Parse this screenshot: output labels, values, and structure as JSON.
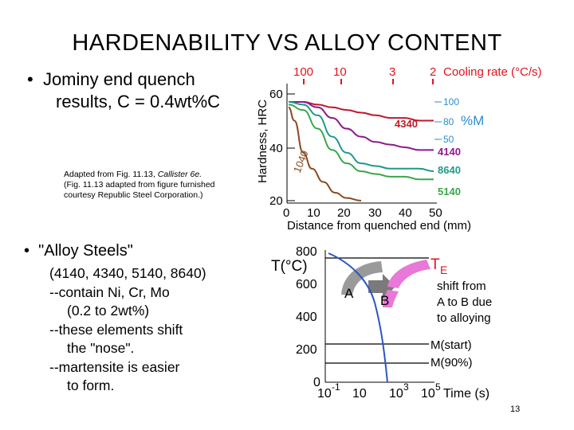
{
  "slide": {
    "title": "HARDENABILITY VS ALLOY CONTENT",
    "bullet1": {
      "marker": "•",
      "line1": "Jominy end quench",
      "line2": "results, C = 0.4wt%C"
    },
    "credit": {
      "line1_a": "Adapted from Fig. 11.13, ",
      "line1_b": "Callister 6e.",
      "line2": "(Fig. 11.13 adapted from figure furnished",
      "line3": "courtesy Republic Steel Corporation.)"
    },
    "bullet2": {
      "marker": "•",
      "text": "\"Alloy Steels\""
    },
    "alloy_list": [
      "(4140, 4340, 5140, 8640)",
      "--contain Ni, Cr, Mo",
      "(0.2 to 2wt%)",
      "--these elements shift",
      "the \"nose\".",
      "--martensite is easier",
      "to form."
    ],
    "page_number": "13"
  },
  "chart_data": [
    {
      "type": "line",
      "xlabel": "Distance from quenched end (mm)",
      "ylabel": "Hardness, HRC",
      "top_axis_label": "Cooling rate (°C/s)",
      "top_ticks": [
        "100",
        "10",
        "3",
        "2"
      ],
      "x_ticks": [
        "0",
        "10",
        "20",
        "30",
        "40",
        "50"
      ],
      "y_ticks": [
        "20",
        "40",
        "60"
      ],
      "xlim": [
        0,
        50
      ],
      "ylim": [
        20,
        65
      ],
      "right_axis_label": "%M",
      "right_ticks": [
        "100",
        "80",
        "50"
      ],
      "series": [
        {
          "name": "4340",
          "color": "#c0182a",
          "x": [
            0,
            5,
            10,
            15,
            20,
            25,
            30,
            35,
            40,
            45,
            50
          ],
          "y": [
            57,
            57,
            56,
            55,
            54,
            53,
            52,
            51,
            51,
            50,
            50
          ]
        },
        {
          "name": "4140",
          "color": "#8b1a8a",
          "x": [
            0,
            5,
            10,
            15,
            20,
            25,
            30,
            35,
            40,
            45,
            50
          ],
          "y": [
            57,
            57,
            55,
            51,
            47,
            44,
            42,
            41,
            40,
            39,
            39
          ]
        },
        {
          "name": "8640",
          "color": "#1f9a8a",
          "x": [
            0,
            5,
            10,
            15,
            20,
            25,
            30,
            35,
            40,
            45,
            50
          ],
          "y": [
            57,
            56,
            52,
            44,
            38,
            34,
            33,
            32,
            32,
            32,
            31
          ]
        },
        {
          "name": "5140",
          "color": "#3aa64a",
          "x": [
            0,
            5,
            10,
            15,
            20,
            25,
            30,
            35,
            40,
            45,
            50
          ],
          "y": [
            56,
            54,
            47,
            39,
            34,
            31,
            30,
            29,
            29,
            28,
            28
          ]
        },
        {
          "name": "1040",
          "color": "#8b4a1e",
          "x": [
            0,
            2,
            5,
            8,
            12,
            16,
            20,
            25
          ],
          "y": [
            55,
            50,
            38,
            32,
            27,
            23,
            21,
            20
          ]
        }
      ],
      "colors": {
        "top_axis": "#e2121e",
        "right_axis": "#2e8ccf"
      }
    },
    {
      "type": "line",
      "title": "",
      "ylabel": "T(°C)",
      "xlabel": "Time (s)",
      "y_ticks": [
        "800",
        "600",
        "400",
        "200",
        "0"
      ],
      "x_ticks": [
        "10",
        "10",
        "10",
        "10"
      ],
      "x_tick_exponents": [
        "-1",
        "",
        "3",
        "5"
      ],
      "labels": {
        "TE": "T",
        "TE_sub": "E",
        "A": "A",
        "B": "B",
        "mstart": "M(start)",
        "m90": "M(90%)"
      },
      "annotation": [
        "shift from",
        "A to B due",
        "to alloying"
      ],
      "colors": {
        "nose_A": "#9a9a9a",
        "nose_B": "#e879d8",
        "cooling_curve": "#2b56c4"
      }
    }
  ]
}
